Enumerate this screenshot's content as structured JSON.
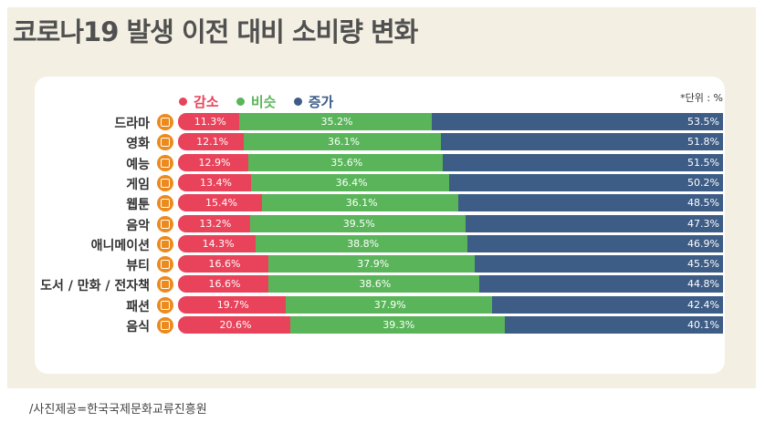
{
  "title": "코로나19 발생 이전 대비 소비량 변화",
  "unit_note": "*단위 : %",
  "source": "/사진제공=한국국제문화교류진흥원",
  "colors": {
    "decrease": "#e8435a",
    "similar": "#5ab55a",
    "increase": "#3d5c86",
    "icon": "#ec8a1e",
    "background": "#f3efe2"
  },
  "chart_data": {
    "type": "bar",
    "orientation": "horizontal",
    "stacked": true,
    "categories": [
      "드라마",
      "영화",
      "예능",
      "게임",
      "웹툰",
      "음악",
      "애니메이션",
      "뷰티",
      "도서 / 만화 / 전자책",
      "패션",
      "음식"
    ],
    "icons": [
      "tv-icon",
      "film-icon",
      "play-icon",
      "gamepad-icon",
      "webtoon-icon",
      "music-icon",
      "animation-icon",
      "beauty-icon",
      "book-icon",
      "shirt-icon",
      "dish-icon"
    ],
    "series": [
      {
        "name": "감소",
        "color": "#e8435a",
        "values": [
          11.3,
          12.1,
          12.9,
          13.4,
          15.4,
          13.2,
          14.3,
          16.6,
          16.6,
          19.7,
          20.6
        ],
        "labels": [
          "11.3%",
          "12.1%",
          "12.9%",
          "13.4%",
          "15.4%",
          "13.2%",
          "14.3%",
          "16.6%",
          "16.6%",
          "19.7%",
          "20.6%"
        ]
      },
      {
        "name": "비슷",
        "color": "#5ab55a",
        "values": [
          35.2,
          36.1,
          35.6,
          36.4,
          36.1,
          39.5,
          38.8,
          37.9,
          38.6,
          37.9,
          39.3
        ],
        "labels": [
          "35.2%",
          "36.1%",
          "35.6%",
          "36.4%",
          "36.1%",
          "39.5%",
          "38.8%",
          "37.9%",
          "38.6%",
          "37.9%",
          "39.3%"
        ]
      },
      {
        "name": "증가",
        "color": "#3d5c86",
        "values": [
          53.5,
          51.8,
          51.5,
          50.2,
          48.5,
          47.3,
          46.9,
          45.5,
          44.8,
          42.4,
          40.1
        ],
        "labels": [
          "53.5%",
          "51.8%",
          "51.5%",
          "50.2%",
          "48.5%",
          "47.3%",
          "46.9%",
          "45.5%",
          "44.8%",
          "42.4%",
          "40.1%"
        ]
      }
    ],
    "xlim": [
      0,
      100
    ],
    "legend_position": "top-left",
    "grid": false
  }
}
